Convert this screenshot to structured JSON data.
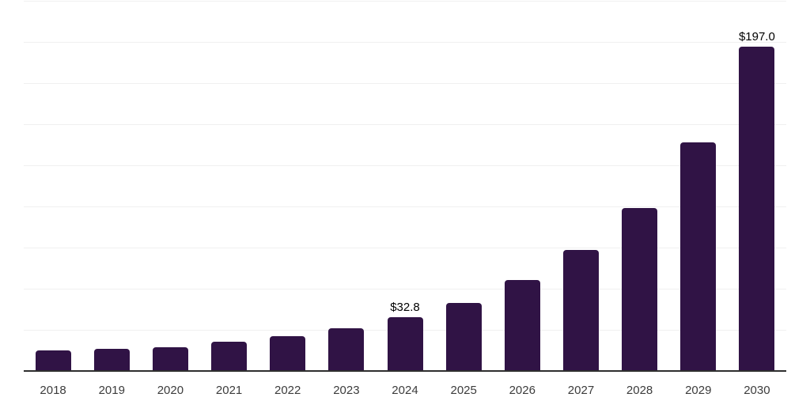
{
  "page": {
    "background_color": "#ffffff"
  },
  "chart_data": {
    "type": "bar",
    "title": "",
    "xlabel": "",
    "ylabel": "",
    "categories": [
      "2018",
      "2019",
      "2020",
      "2021",
      "2022",
      "2023",
      "2024",
      "2025",
      "2026",
      "2027",
      "2028",
      "2029",
      "2030"
    ],
    "values": [
      12.3,
      13.3,
      14.5,
      17.6,
      20.9,
      25.7,
      32.8,
      41.4,
      55.4,
      73.3,
      98.9,
      138.6,
      197.0
    ],
    "data_labels": [
      {
        "category": "2024",
        "text": "$32.8"
      },
      {
        "category": "2030",
        "text": "$197.0"
      }
    ],
    "ylim": [
      0,
      225
    ],
    "grid_interval": 25,
    "grid": "on",
    "legend": "none",
    "y_axis_tick_labels_visible": false,
    "bar_color": "#301345",
    "gridline_color": "#f0f0f0",
    "axis_line_color": "#2e2e2e",
    "tick_label_color": "#3c3c3c",
    "data_label_color": "#000000"
  }
}
